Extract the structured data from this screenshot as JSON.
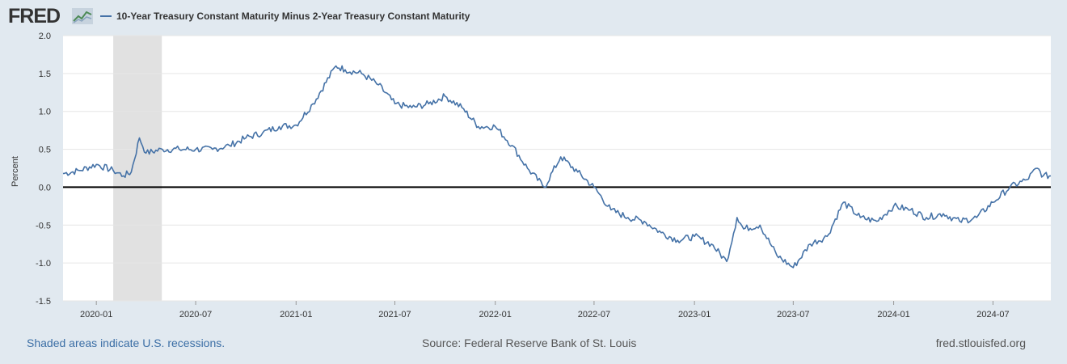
{
  "header": {
    "logo_text": "FRED",
    "legend_label": "10-Year Treasury Constant Maturity Minus 2-Year Treasury Constant Maturity"
  },
  "footer": {
    "left": "Shaded areas indicate U.S. recessions.",
    "middle": "Source: Federal Reserve Bank of St. Louis",
    "right": "fred.stlouisfed.org"
  },
  "colors": {
    "background": "#e1e9f0",
    "plot_background": "#ffffff",
    "series": "#4572a7",
    "recession": "#e1e1e1",
    "zero_line": "#000000",
    "grid": "#e6e6e6"
  },
  "chart_data": {
    "type": "line",
    "title": "",
    "xlabel": "",
    "ylabel": "Percent",
    "ylim": [
      -1.5,
      2.0
    ],
    "xlim": [
      "2019-11-01",
      "2024-10-15"
    ],
    "grid": true,
    "x_ticks": [
      "2020-01",
      "2020-07",
      "2021-01",
      "2021-07",
      "2022-01",
      "2022-07",
      "2023-01",
      "2023-07",
      "2024-01",
      "2024-07"
    ],
    "y_ticks": [
      "2.0",
      "1.5",
      "1.0",
      "0.5",
      "0.0",
      "-0.5",
      "-1.0",
      "-1.5"
    ],
    "recessions": [
      {
        "start": "2020-02-01",
        "end": "2020-04-30"
      }
    ],
    "reference_line": 0.0,
    "series": [
      {
        "name": "10-Year Treasury Constant Maturity Minus 2-Year Treasury Constant Maturity",
        "x": [
          "2019-11-01",
          "2019-12-01",
          "2020-01-01",
          "2020-02-01",
          "2020-02-20",
          "2020-03-05",
          "2020-03-20",
          "2020-04-01",
          "2020-05-01",
          "2020-06-01",
          "2020-07-01",
          "2020-08-01",
          "2020-09-01",
          "2020-10-01",
          "2020-11-01",
          "2020-12-01",
          "2021-01-01",
          "2021-02-01",
          "2021-03-15",
          "2021-04-01",
          "2021-05-01",
          "2021-06-01",
          "2021-07-01",
          "2021-08-01",
          "2021-09-01",
          "2021-10-01",
          "2021-11-01",
          "2021-12-01",
          "2022-01-01",
          "2022-02-01",
          "2022-03-01",
          "2022-04-01",
          "2022-05-01",
          "2022-06-01",
          "2022-07-01",
          "2022-08-01",
          "2022-09-01",
          "2022-10-01",
          "2022-11-01",
          "2022-12-01",
          "2023-01-01",
          "2023-02-01",
          "2023-03-01",
          "2023-03-20",
          "2023-04-01",
          "2023-05-01",
          "2023-06-01",
          "2023-07-01",
          "2023-08-01",
          "2023-09-01",
          "2023-10-01",
          "2023-11-01",
          "2023-12-01",
          "2024-01-01",
          "2024-02-01",
          "2024-03-01",
          "2024-04-01",
          "2024-05-01",
          "2024-06-01",
          "2024-07-01",
          "2024-08-01",
          "2024-09-01",
          "2024-09-20",
          "2024-10-01",
          "2024-10-15"
        ],
        "values": [
          0.18,
          0.22,
          0.3,
          0.22,
          0.15,
          0.2,
          0.65,
          0.45,
          0.5,
          0.5,
          0.5,
          0.5,
          0.55,
          0.65,
          0.72,
          0.8,
          0.82,
          1.1,
          1.6,
          1.55,
          1.5,
          1.35,
          1.1,
          1.05,
          1.1,
          1.2,
          1.05,
          0.8,
          0.8,
          0.55,
          0.25,
          0.0,
          0.4,
          0.2,
          0.0,
          -0.3,
          -0.4,
          -0.45,
          -0.6,
          -0.7,
          -0.65,
          -0.75,
          -0.98,
          -0.4,
          -0.55,
          -0.5,
          -0.9,
          -1.06,
          -0.75,
          -0.65,
          -0.2,
          -0.4,
          -0.45,
          -0.25,
          -0.3,
          -0.4,
          -0.35,
          -0.45,
          -0.4,
          -0.2,
          0.0,
          0.1,
          0.25,
          0.15,
          0.15
        ]
      }
    ]
  }
}
